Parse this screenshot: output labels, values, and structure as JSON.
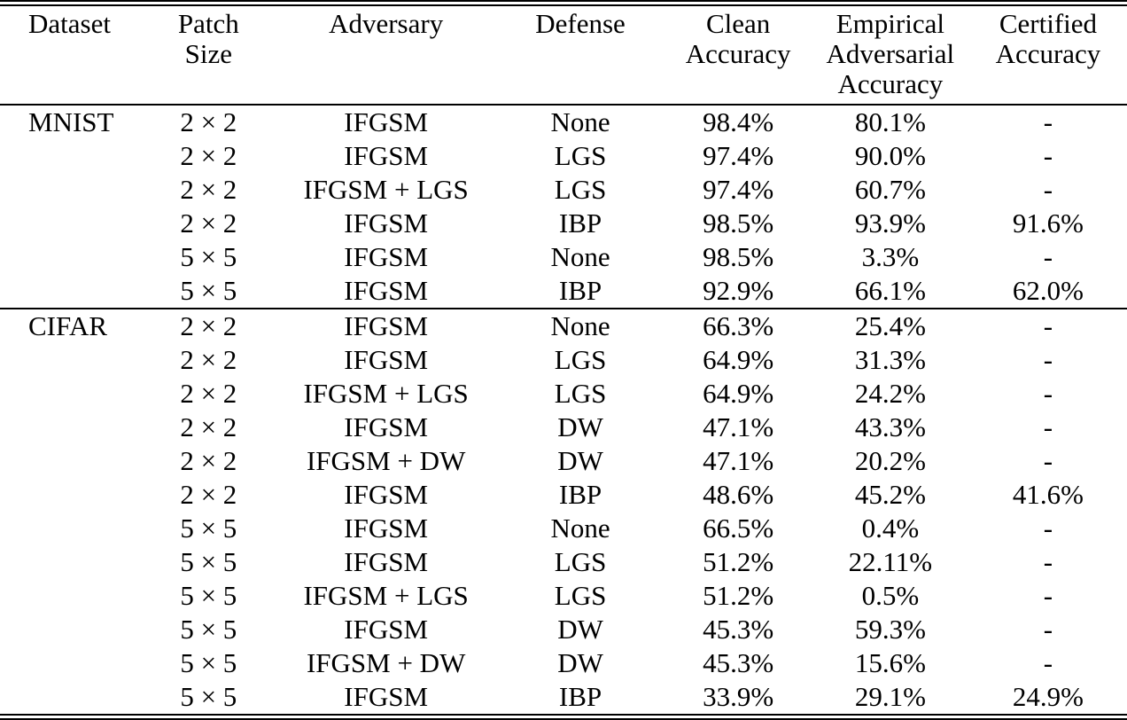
{
  "table": {
    "headers": [
      {
        "id": "dataset",
        "label": "Dataset"
      },
      {
        "id": "patch-size",
        "label": "Patch\nSize"
      },
      {
        "id": "adversary",
        "label": "Adversary"
      },
      {
        "id": "defense",
        "label": "Defense"
      },
      {
        "id": "clean-accuracy",
        "label": "Clean\nAccuracy"
      },
      {
        "id": "empirical-adversarial-accuracy",
        "label": "Empirical\nAdversarial\nAccuracy"
      },
      {
        "id": "certified-accuracy",
        "label": "Certified\nAccuracy"
      }
    ],
    "text_color": "#000000",
    "background_color": "#ffffff",
    "sections": [
      {
        "dataset": "MNIST",
        "rows": [
          [
            "2 × 2",
            "IFGSM",
            "None",
            "98.4%",
            "80.1%",
            "-"
          ],
          [
            "2 × 2",
            "IFGSM",
            "LGS",
            "97.4%",
            "90.0%",
            "-"
          ],
          [
            "2 × 2",
            "IFGSM + LGS",
            "LGS",
            "97.4%",
            "60.7%",
            "-"
          ],
          [
            "2 × 2",
            "IFGSM",
            "IBP",
            "98.5%",
            "93.9%",
            "91.6%"
          ],
          [
            "5 × 5",
            "IFGSM",
            "None",
            "98.5%",
            "3.3%",
            "-"
          ],
          [
            "5 × 5",
            "IFGSM",
            "IBP",
            "92.9%",
            "66.1%",
            "62.0%"
          ]
        ]
      },
      {
        "dataset": "CIFAR",
        "rows": [
          [
            "2 × 2",
            "IFGSM",
            "None",
            "66.3%",
            "25.4%",
            "-"
          ],
          [
            "2 × 2",
            "IFGSM",
            "LGS",
            "64.9%",
            "31.3%",
            "-"
          ],
          [
            "2 × 2",
            "IFGSM + LGS",
            "LGS",
            "64.9%",
            "24.2%",
            "-"
          ],
          [
            "2 × 2",
            "IFGSM",
            "DW",
            "47.1%",
            "43.3%",
            "-"
          ],
          [
            "2 × 2",
            "IFGSM + DW",
            "DW",
            "47.1%",
            "20.2%",
            "-"
          ],
          [
            "2 × 2",
            "IFGSM",
            "IBP",
            "48.6%",
            "45.2%",
            "41.6%"
          ],
          [
            "5 × 5",
            "IFGSM",
            "None",
            "66.5%",
            "0.4%",
            "-"
          ],
          [
            "5 × 5",
            "IFGSM",
            "LGS",
            "51.2%",
            "22.11%",
            "-"
          ],
          [
            "5 × 5",
            "IFGSM + LGS",
            "LGS",
            "51.2%",
            "0.5%",
            "-"
          ],
          [
            "5 × 5",
            "IFGSM",
            "DW",
            "45.3%",
            "59.3%",
            "-"
          ],
          [
            "5 × 5",
            "IFGSM + DW",
            "DW",
            "45.3%",
            "15.6%",
            "-"
          ],
          [
            "5 × 5",
            "IFGSM",
            "IBP",
            "33.9%",
            "29.1%",
            "24.9%"
          ]
        ]
      }
    ]
  }
}
